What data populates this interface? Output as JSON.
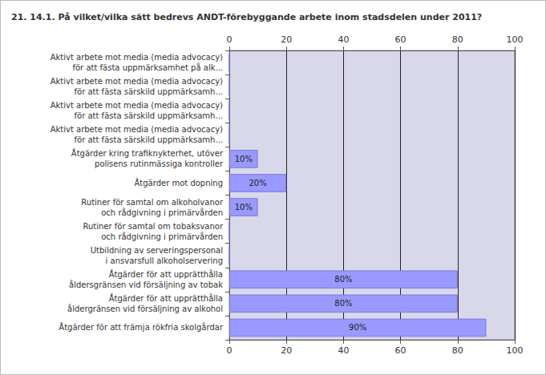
{
  "chart_data": {
    "type": "bar",
    "orientation": "horizontal",
    "title": "21. 14.1. På vilket/vilka sätt bedrevs ANDT-förebyggande arbete inom stadsdelen under 2011?",
    "categories": [
      "Aktivt arbete mot media (media advocacy)\nför att fästa uppmärksamhet på alk...",
      "Aktivt arbete mot media (media advocacy)\nför att fästa särskild uppmärksamh...",
      "Aktivt arbete mot media (media advocacy)\nför att fästa särskild uppmärksamh...",
      "Aktivt arbete mot media (media advocacy)\nför att fästa särskild uppmärksamh...",
      "Åtgärder kring trafiknykterhet, utöver\npolisens rutinmässiga kontroller",
      "Åtgärder mot dopning",
      "Rutiner för samtal om alkoholvanor\noch rådgivning i primärvården",
      "Rutiner för samtal om tobaksvanor\noch rådgivning i primärvården",
      "Utbildning av serveringspersonal\ni ansvarsfull alkoholservering",
      "Åtgärder för att upprätthålla\nåldersgränsen vid försäljning av tobak",
      "Åtgärder för att upprätthålla\nåldergränsen vid försäljning av alkohol",
      "Åtgärder för att främja rökfria skolgårdar"
    ],
    "values": [
      0,
      0,
      0,
      0,
      10,
      20,
      10,
      0,
      0,
      80,
      80,
      90
    ],
    "value_labels": [
      null,
      null,
      null,
      null,
      "10%",
      "20%",
      "10%",
      null,
      null,
      "80%",
      "80%",
      "90%"
    ],
    "data_labels": true,
    "color": "#9999ff",
    "xlim": [
      0,
      100
    ],
    "xticks": [
      0,
      20,
      40,
      60,
      80,
      100
    ],
    "grid": true
  }
}
